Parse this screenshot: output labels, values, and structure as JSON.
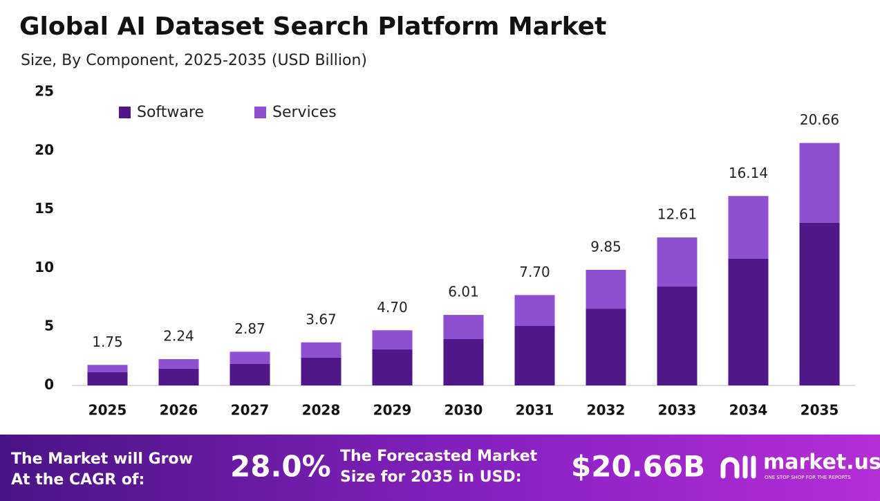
{
  "chart_data": {
    "type": "stacked_bar",
    "title": "Global AI Dataset Search Platform Market",
    "subtitle": "Size, By Component, 2025-2035 (USD Billion)",
    "categories": [
      "2025",
      "2026",
      "2027",
      "2028",
      "2029",
      "2030",
      "2031",
      "2032",
      "2033",
      "2034",
      "2035"
    ],
    "series": [
      {
        "name": "Software",
        "color": "#4f1787",
        "values": [
          1.12,
          1.42,
          1.83,
          2.36,
          3.07,
          3.95,
          5.07,
          6.54,
          8.43,
          10.79,
          13.86
        ]
      },
      {
        "name": "Services",
        "color": "#8e4fd0",
        "values": [
          0.63,
          0.82,
          1.04,
          1.31,
          1.63,
          2.06,
          2.63,
          3.31,
          4.18,
          5.35,
          6.8
        ]
      }
    ],
    "totals": [
      1.75,
      2.24,
      2.87,
      3.67,
      4.7,
      6.01,
      7.7,
      9.85,
      12.61,
      16.14,
      20.66
    ],
    "total_labels": [
      "1.75",
      "2.24",
      "2.87",
      "3.67",
      "4.70",
      "6.01",
      "7.70",
      "9.85",
      "12.61",
      "16.14",
      "20.66"
    ],
    "ylim": [
      0,
      25
    ],
    "yticks": [
      0,
      5,
      10,
      15,
      20,
      25
    ],
    "grid": false,
    "legend": "top-left"
  },
  "banner": {
    "cagr_text": [
      "The Market will Grow",
      "At the CAGR of:"
    ],
    "cagr": "28.0%",
    "forecast_text": [
      "The Forecasted Market",
      "Size for 2035 in USD:"
    ],
    "forecast": "$20.66B",
    "logo": "market.us",
    "tagline": "ONE STOP SHOP FOR THE REPORTS"
  }
}
